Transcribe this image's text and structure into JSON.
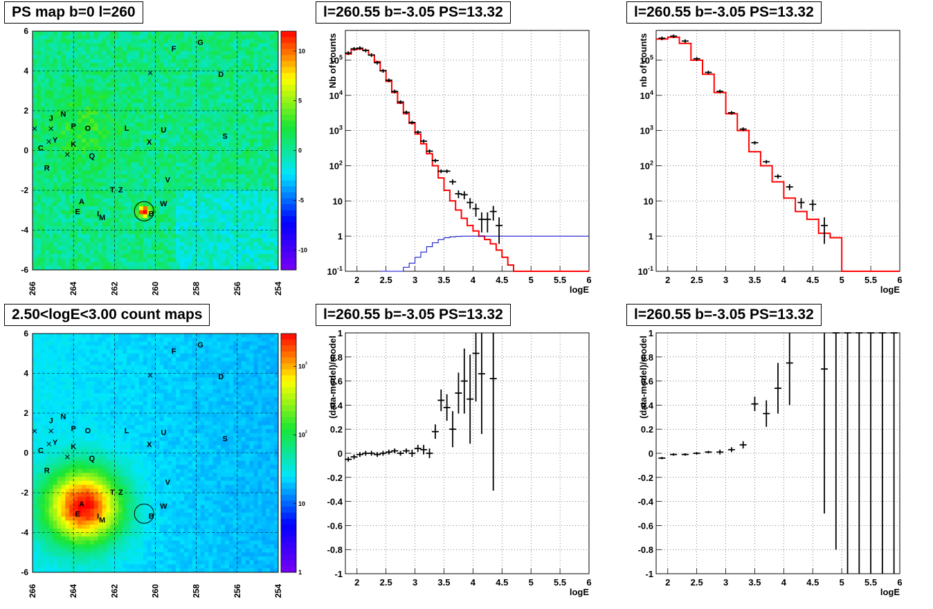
{
  "chart_data": [
    {
      "type": "heatmap",
      "title": "PS map b=0 l=260",
      "xlim": [
        266,
        254
      ],
      "ylim": [
        -6,
        6
      ],
      "x_ticks": [
        "266",
        "264",
        "262",
        "260",
        "258",
        "256",
        "254"
      ],
      "y_ticks": [
        "-6",
        "-4",
        "-2",
        "0",
        "2",
        "4",
        "6"
      ],
      "colorbar": {
        "scale": "linear",
        "range": [
          -12,
          12
        ],
        "ticks": [
          "10",
          "5",
          "0",
          "-5",
          "-10"
        ]
      },
      "grid": true,
      "hotspot": {
        "l": 260.55,
        "b": -3.05
      },
      "circle": {
        "l": 260.55,
        "b": -3.05
      },
      "labels": [
        {
          "t": "F",
          "l": 259.1,
          "b": 5.0
        },
        {
          "t": "G",
          "l": 257.8,
          "b": 5.3
        },
        {
          "t": "D",
          "l": 256.8,
          "b": 3.7
        },
        {
          "t": "J",
          "l": 265.1,
          "b": 1.5
        },
        {
          "t": "N",
          "l": 264.5,
          "b": 1.7
        },
        {
          "t": "P",
          "l": 264.0,
          "b": 1.1
        },
        {
          "t": "O",
          "l": 263.3,
          "b": 1.0
        },
        {
          "t": "L",
          "l": 261.4,
          "b": 1.0
        },
        {
          "t": "U",
          "l": 259.6,
          "b": 0.9
        },
        {
          "t": "S",
          "l": 256.6,
          "b": 0.6
        },
        {
          "t": "C",
          "l": 265.6,
          "b": 0.0
        },
        {
          "t": "Y",
          "l": 264.9,
          "b": 0.4
        },
        {
          "t": "K",
          "l": 264.0,
          "b": 0.2
        },
        {
          "t": "X",
          "l": 260.3,
          "b": 0.3
        },
        {
          "t": "Q",
          "l": 263.1,
          "b": -0.4
        },
        {
          "t": "R",
          "l": 265.3,
          "b": -1.0
        },
        {
          "t": "V",
          "l": 259.4,
          "b": -1.6
        },
        {
          "t": "T",
          "l": 262.1,
          "b": -2.1
        },
        {
          "t": "Z",
          "l": 261.7,
          "b": -2.1
        },
        {
          "t": "A",
          "l": 263.6,
          "b": -2.7
        },
        {
          "t": "W",
          "l": 259.6,
          "b": -2.8
        },
        {
          "t": "E",
          "l": 263.8,
          "b": -3.2
        },
        {
          "t": "I",
          "l": 262.8,
          "b": -3.3
        },
        {
          "t": "M",
          "l": 262.6,
          "b": -3.5
        },
        {
          "t": "B",
          "l": 260.2,
          "b": -3.3
        }
      ],
      "crosses": [
        {
          "l": 265.9,
          "b": 1.1
        },
        {
          "l": 265.1,
          "b": 1.1
        },
        {
          "l": 265.2,
          "b": 0.45
        },
        {
          "l": 264.3,
          "b": -0.2
        },
        {
          "l": 260.25,
          "b": 3.9
        }
      ]
    },
    {
      "type": "line",
      "title": "l=260.55 b=-3.05 PS=13.32",
      "xlabel": "logE",
      "ylabel": "Nb of counts",
      "yscale": "log",
      "xlim": [
        1.8,
        6.0
      ],
      "ylim": [
        0.1,
        700000
      ],
      "x_ticks": [
        "2",
        "2.5",
        "3",
        "3.5",
        "4",
        "4.5",
        "5",
        "5.5",
        "6"
      ],
      "y_ticks": [
        "10^-1",
        "1",
        "10",
        "10^2",
        "10^3",
        "10^4",
        "10^5"
      ],
      "grid": true,
      "series": [
        {
          "color": "#ff0000",
          "bin_edges": [
            1.8,
            1.9,
            2.0,
            2.1,
            2.2,
            2.3,
            2.4,
            2.5,
            2.6,
            2.7,
            2.8,
            2.9,
            3.0,
            3.1,
            3.2,
            3.3,
            3.4,
            3.5,
            3.6,
            3.7,
            3.8,
            3.9,
            4.0,
            4.1,
            4.2,
            4.3,
            4.4,
            4.5,
            4.6,
            4.7,
            4.8,
            4.9,
            5.0,
            5.1,
            5.2,
            5.3,
            5.4,
            5.5,
            5.6,
            5.7,
            5.8,
            5.9,
            6.0
          ],
          "values": [
            150000,
            200000,
            210000,
            190000,
            140000,
            90000,
            50000,
            25000,
            12000,
            6000,
            3000,
            1600,
            800,
            420,
            220,
            100,
            45,
            20,
            10,
            5.5,
            3.2,
            2,
            1.4,
            1,
            0.8,
            0.6,
            0.4,
            0.25,
            0.15,
            0.1,
            0.1,
            0.1,
            0.1,
            0.1,
            0.1,
            0.1,
            0.1,
            0.1,
            0.1,
            0.1,
            0.1,
            0.1
          ]
        },
        {
          "color": "#0000cc",
          "bin_edges": [
            2.4,
            2.5,
            2.6,
            2.7,
            2.8,
            2.9,
            3.0,
            3.1,
            3.2,
            3.3,
            3.4,
            3.5,
            3.6,
            3.7,
            3.8,
            3.9,
            4.0,
            4.1,
            4.2,
            4.3,
            4.4,
            4.5,
            4.6,
            4.7,
            4.8,
            4.9,
            5.0,
            5.2,
            5.4,
            5.6,
            5.8,
            6.0
          ],
          "values": [
            0.1,
            0.1,
            0.1,
            0.1,
            0.13,
            0.17,
            0.25,
            0.35,
            0.5,
            0.65,
            0.8,
            0.9,
            0.95,
            0.98,
            1,
            1,
            1,
            1,
            1,
            1,
            1,
            1,
            1,
            1,
            1,
            1,
            1,
            1,
            1,
            1,
            1
          ]
        }
      ],
      "points": [
        {
          "x": 1.85,
          "y": 160000
        },
        {
          "x": 1.95,
          "y": 210000
        },
        {
          "x": 2.05,
          "y": 220000
        },
        {
          "x": 2.15,
          "y": 190000
        },
        {
          "x": 2.25,
          "y": 140000
        },
        {
          "x": 2.35,
          "y": 85000
        },
        {
          "x": 2.45,
          "y": 50000
        },
        {
          "x": 2.55,
          "y": 27000
        },
        {
          "x": 2.65,
          "y": 13000
        },
        {
          "x": 2.75,
          "y": 6500
        },
        {
          "x": 2.85,
          "y": 3300
        },
        {
          "x": 2.95,
          "y": 1700
        },
        {
          "x": 3.05,
          "y": 900
        },
        {
          "x": 3.15,
          "y": 500
        },
        {
          "x": 3.25,
          "y": 260
        },
        {
          "x": 3.35,
          "y": 140
        },
        {
          "x": 3.45,
          "y": 70
        },
        {
          "x": 3.55,
          "y": 70
        },
        {
          "x": 3.65,
          "y": 35
        },
        {
          "x": 3.75,
          "y": 16
        },
        {
          "x": 3.85,
          "y": 15
        },
        {
          "x": 3.95,
          "y": 9
        },
        {
          "x": 4.05,
          "y": 6
        },
        {
          "x": 4.15,
          "y": 3
        },
        {
          "x": 4.25,
          "y": 3
        },
        {
          "x": 4.35,
          "y": 5
        },
        {
          "x": 4.45,
          "y": 2
        }
      ]
    },
    {
      "type": "line",
      "title": "l=260.55 b=-3.05 PS=13.32",
      "xlabel": "logE",
      "ylabel": "nb of counts",
      "yscale": "log",
      "xlim": [
        1.8,
        6.0
      ],
      "ylim": [
        0.1,
        700000
      ],
      "x_ticks": [
        "2",
        "2.5",
        "3",
        "3.5",
        "4",
        "4.5",
        "5",
        "5.5",
        "6"
      ],
      "y_ticks": [
        "10^-1",
        "1",
        "10",
        "10^2",
        "10^3",
        "10^4",
        "10^5"
      ],
      "grid": true,
      "series": [
        {
          "color": "#ff0000",
          "bin_edges": [
            1.8,
            2.0,
            2.2,
            2.4,
            2.6,
            2.8,
            3.0,
            3.2,
            3.4,
            3.6,
            3.8,
            4.0,
            4.2,
            4.4,
            4.6,
            4.8,
            5.0,
            5.2,
            5.4,
            5.6,
            5.8,
            6.0
          ],
          "values": [
            400000,
            450000,
            300000,
            100000,
            40000,
            12000,
            3000,
            1000,
            250,
            100,
            35,
            12,
            5,
            3,
            1.2,
            0.9,
            0.1,
            0.1,
            0.1,
            0.1,
            0.1
          ]
        }
      ],
      "points": [
        {
          "x": 1.9,
          "y": 420000
        },
        {
          "x": 2.1,
          "y": 480000
        },
        {
          "x": 2.3,
          "y": 350000
        },
        {
          "x": 2.5,
          "y": 110000
        },
        {
          "x": 2.7,
          "y": 45000
        },
        {
          "x": 2.9,
          "y": 13000
        },
        {
          "x": 3.1,
          "y": 3200
        },
        {
          "x": 3.3,
          "y": 1100
        },
        {
          "x": 3.5,
          "y": 450
        },
        {
          "x": 3.7,
          "y": 130
        },
        {
          "x": 3.9,
          "y": 50
        },
        {
          "x": 4.1,
          "y": 25
        },
        {
          "x": 4.3,
          "y": 9
        },
        {
          "x": 4.5,
          "y": 8
        },
        {
          "x": 4.7,
          "y": 2
        }
      ]
    },
    {
      "type": "heatmap",
      "title": "2.50<logE<3.00 count maps",
      "xlim": [
        266,
        254
      ],
      "ylim": [
        -6,
        6
      ],
      "x_ticks": [
        "266",
        "264",
        "262",
        "260",
        "258",
        "256",
        "254"
      ],
      "y_ticks": [
        "-6",
        "-4",
        "-2",
        "0",
        "2",
        "4",
        "6"
      ],
      "colorbar": {
        "scale": "log",
        "range": [
          1,
          3000
        ],
        "ticks": [
          "10^3",
          "10^2",
          "10",
          "1"
        ]
      },
      "grid": true,
      "hotspot": {
        "l": 263.5,
        "b": -2.7
      },
      "circle": {
        "l": 260.55,
        "b": -3.05
      },
      "labels": [
        {
          "t": "F",
          "l": 259.1,
          "b": 5.0
        },
        {
          "t": "G",
          "l": 257.8,
          "b": 5.3
        },
        {
          "t": "D",
          "l": 256.8,
          "b": 3.7
        },
        {
          "t": "J",
          "l": 265.1,
          "b": 1.5
        },
        {
          "t": "N",
          "l": 264.5,
          "b": 1.7
        },
        {
          "t": "P",
          "l": 264.0,
          "b": 1.1
        },
        {
          "t": "O",
          "l": 263.3,
          "b": 1.0
        },
        {
          "t": "L",
          "l": 261.4,
          "b": 1.0
        },
        {
          "t": "U",
          "l": 259.6,
          "b": 0.9
        },
        {
          "t": "S",
          "l": 256.6,
          "b": 0.6
        },
        {
          "t": "C",
          "l": 265.6,
          "b": 0.0
        },
        {
          "t": "Y",
          "l": 264.9,
          "b": 0.4
        },
        {
          "t": "K",
          "l": 264.0,
          "b": 0.2
        },
        {
          "t": "X",
          "l": 260.3,
          "b": 0.3
        },
        {
          "t": "Q",
          "l": 263.1,
          "b": -0.4
        },
        {
          "t": "R",
          "l": 265.3,
          "b": -1.0
        },
        {
          "t": "V",
          "l": 259.4,
          "b": -1.6
        },
        {
          "t": "T",
          "l": 262.1,
          "b": -2.1
        },
        {
          "t": "Z",
          "l": 261.7,
          "b": -2.1
        },
        {
          "t": "A",
          "l": 263.6,
          "b": -2.7
        },
        {
          "t": "W",
          "l": 259.6,
          "b": -2.8
        },
        {
          "t": "E",
          "l": 263.8,
          "b": -3.2
        },
        {
          "t": "I",
          "l": 262.8,
          "b": -3.3
        },
        {
          "t": "M",
          "l": 262.6,
          "b": -3.5
        },
        {
          "t": "B",
          "l": 260.2,
          "b": -3.3
        }
      ],
      "crosses": [
        {
          "l": 265.9,
          "b": 1.1
        },
        {
          "l": 265.1,
          "b": 1.1
        },
        {
          "l": 265.2,
          "b": 0.45
        },
        {
          "l": 264.3,
          "b": -0.2
        },
        {
          "l": 260.25,
          "b": 3.9
        }
      ]
    },
    {
      "type": "scatter",
      "title": "l=260.55 b=-3.05 PS=13.32",
      "xlabel": "logE",
      "ylabel": "(data-model)/model",
      "xlim": [
        1.8,
        6.0
      ],
      "ylim": [
        -1,
        1
      ],
      "x_ticks": [
        "2",
        "2.5",
        "3",
        "3.5",
        "4",
        "4.5",
        "5",
        "5.5",
        "6"
      ],
      "y_ticks": [
        "-1",
        "-0.8",
        "-0.6",
        "-0.4",
        "-0.2",
        "0",
        "0.2",
        "0.4",
        "0.6",
        "0.8",
        "1"
      ],
      "grid": true,
      "points": [
        {
          "x": 1.85,
          "y": -0.05,
          "err": 0.02
        },
        {
          "x": 1.95,
          "y": -0.03,
          "err": 0.02
        },
        {
          "x": 2.05,
          "y": -0.01,
          "err": 0.02
        },
        {
          "x": 2.15,
          "y": 0.0,
          "err": 0.02
        },
        {
          "x": 2.25,
          "y": 0.0,
          "err": 0.02
        },
        {
          "x": 2.35,
          "y": -0.01,
          "err": 0.02
        },
        {
          "x": 2.45,
          "y": 0.0,
          "err": 0.02
        },
        {
          "x": 2.55,
          "y": 0.01,
          "err": 0.02
        },
        {
          "x": 2.65,
          "y": 0.02,
          "err": 0.02
        },
        {
          "x": 2.75,
          "y": 0.0,
          "err": 0.02
        },
        {
          "x": 2.85,
          "y": 0.02,
          "err": 0.02
        },
        {
          "x": 2.95,
          "y": 0.0,
          "err": 0.03
        },
        {
          "x": 3.05,
          "y": 0.04,
          "err": 0.03
        },
        {
          "x": 3.15,
          "y": 0.03,
          "err": 0.04
        },
        {
          "x": 3.25,
          "y": 0.0,
          "err": 0.04
        },
        {
          "x": 3.35,
          "y": 0.18,
          "err": 0.06
        },
        {
          "x": 3.45,
          "y": 0.44,
          "err": 0.09
        },
        {
          "x": 3.55,
          "y": 0.38,
          "err": 0.11
        },
        {
          "x": 3.65,
          "y": 0.2,
          "err": 0.15
        },
        {
          "x": 3.75,
          "y": 0.5,
          "err": 0.17
        },
        {
          "x": 3.85,
          "y": 0.6,
          "err": 0.27
        },
        {
          "x": 3.95,
          "y": 0.45,
          "err": 0.37
        },
        {
          "x": 4.05,
          "y": 0.83,
          "err": 0.4
        },
        {
          "x": 4.15,
          "y": 0.66,
          "err": 0.5
        },
        {
          "x": 4.35,
          "y": 0.62,
          "err": 0.93
        }
      ]
    },
    {
      "type": "scatter",
      "title": "l=260.55 b=-3.05 PS=13.32",
      "xlabel": "logE",
      "ylabel": "(data-model)/model",
      "xlim": [
        1.8,
        6.0
      ],
      "ylim": [
        -1,
        1
      ],
      "x_ticks": [
        "2",
        "2.5",
        "3",
        "3.5",
        "4",
        "4.5",
        "5",
        "5.5",
        "6"
      ],
      "y_ticks": [
        "-1",
        "-0.8",
        "-0.6",
        "-0.4",
        "-0.2",
        "0",
        "0.2",
        "0.4",
        "0.6",
        "0.8",
        "1"
      ],
      "grid": true,
      "points": [
        {
          "x": 1.9,
          "y": -0.04,
          "err": 0.01
        },
        {
          "x": 2.1,
          "y": -0.01,
          "err": 0.01
        },
        {
          "x": 2.3,
          "y": -0.01,
          "err": 0.01
        },
        {
          "x": 2.5,
          "y": 0.0,
          "err": 0.01
        },
        {
          "x": 2.7,
          "y": 0.01,
          "err": 0.01
        },
        {
          "x": 2.9,
          "y": 0.01,
          "err": 0.02
        },
        {
          "x": 3.1,
          "y": 0.03,
          "err": 0.02
        },
        {
          "x": 3.3,
          "y": 0.07,
          "err": 0.03
        },
        {
          "x": 3.5,
          "y": 0.41,
          "err": 0.06
        },
        {
          "x": 3.7,
          "y": 0.33,
          "err": 0.11
        },
        {
          "x": 3.9,
          "y": 0.54,
          "err": 0.21
        },
        {
          "x": 4.1,
          "y": 0.75,
          "err": 0.35
        },
        {
          "x": 4.7,
          "y": 0.7,
          "err": 1.2
        },
        {
          "x": 4.9,
          "y": 1.0,
          "err": 1.8
        },
        {
          "x": 5.1,
          "y": 1.0,
          "err": 2.5
        },
        {
          "x": 5.3,
          "y": 1.0,
          "err": 2.5
        },
        {
          "x": 5.5,
          "y": 1.0,
          "err": 2.5
        },
        {
          "x": 5.7,
          "y": 1.0,
          "err": 2.5
        },
        {
          "x": 5.9,
          "y": 1.0,
          "err": 2.5
        }
      ]
    }
  ]
}
